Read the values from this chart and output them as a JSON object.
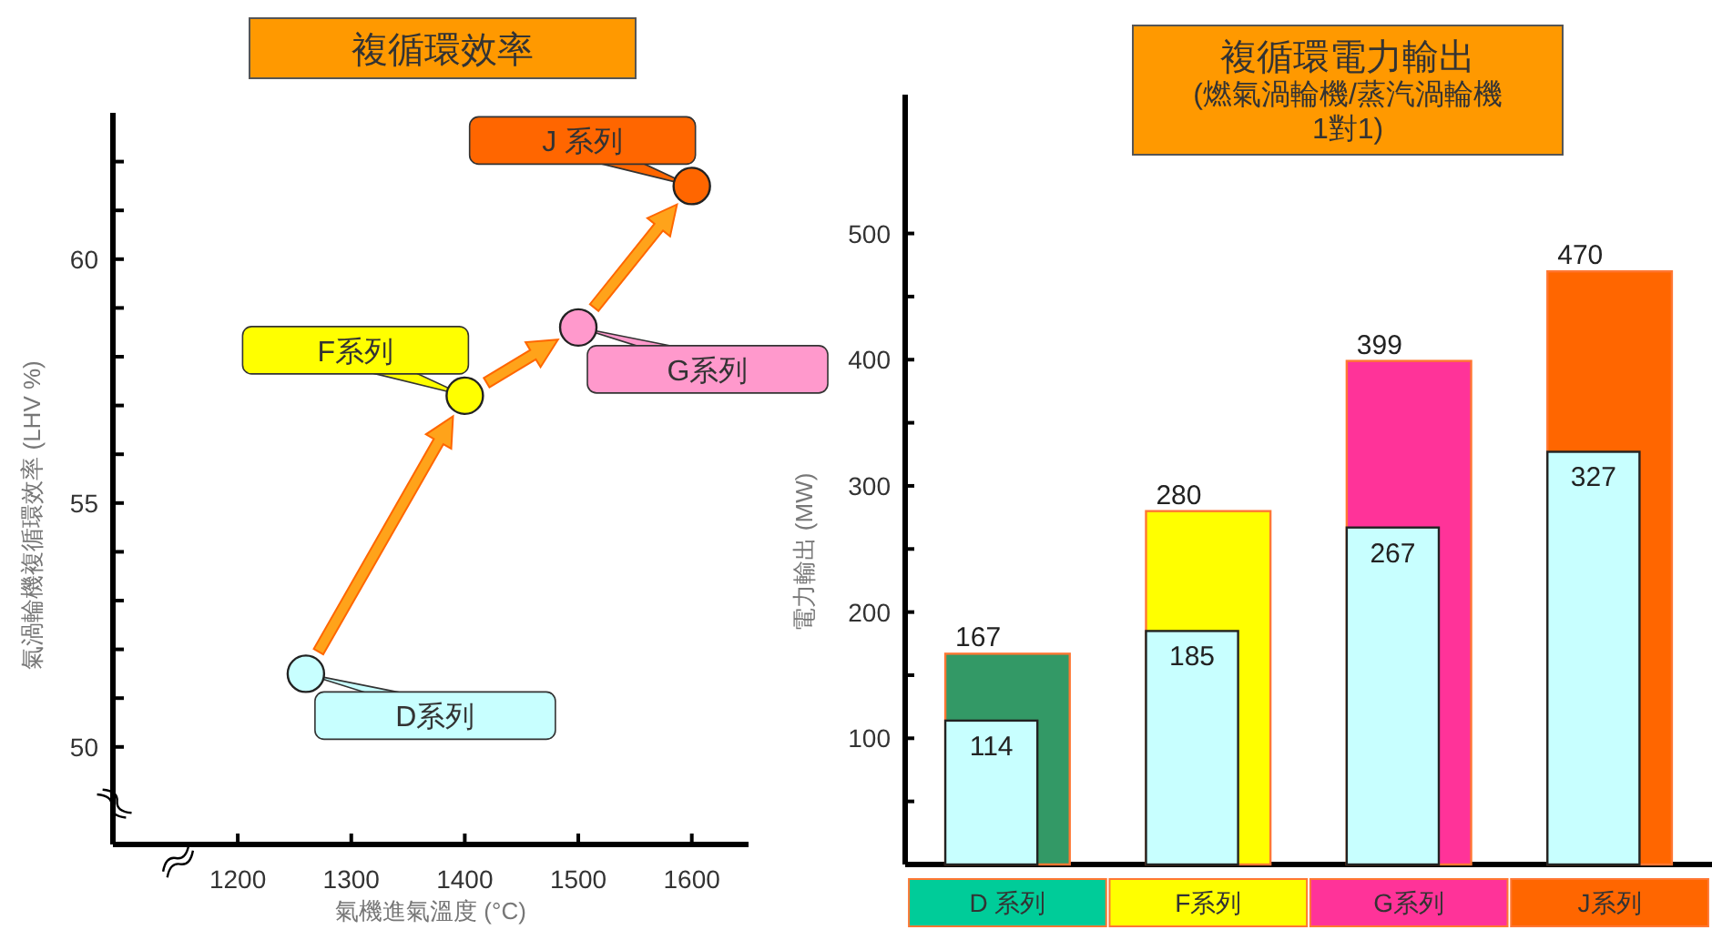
{
  "chart_data": [
    {
      "type": "scatter",
      "title": "複循環效率",
      "xlabel": "氣機進氣溫度 (°C)",
      "ylabel": "氣渦輪機複循環效率 (LHV %)",
      "x": [
        1260,
        1400,
        1500,
        1600
      ],
      "series": [
        {
          "values": [
            51.5,
            57.2,
            58.6,
            61.5
          ],
          "colors": [
            "#c8ffff",
            "#ffff00",
            "#ff99cc",
            "#ff6600"
          ]
        }
      ],
      "xlim": [
        1090,
        1650
      ],
      "xticks": [
        1200,
        1300,
        1400,
        1500,
        1600
      ],
      "ylim": [
        48,
        63
      ],
      "yticks": [
        50,
        {
          "value": 51,
          "label": null
        },
        {
          "value": 52,
          "label": null
        },
        {
          "value": 53,
          "label": null
        },
        {
          "value": 54,
          "label": null
        },
        55,
        {
          "value": 56,
          "label": null
        },
        {
          "value": 57,
          "label": null
        },
        {
          "value": 58,
          "label": null
        },
        {
          "value": 59,
          "label": null
        },
        60,
        {
          "value": 61,
          "label": null
        },
        {
          "value": 62,
          "label": null
        }
      ],
      "marker": "circle",
      "annotations": [
        {
          "text": "D系列",
          "x": 1260,
          "y": 51.5
        },
        {
          "text": "F系列",
          "x": 1400,
          "y": 57.2
        },
        {
          "text": "G系列",
          "x": 1500,
          "y": 58.6
        },
        {
          "text": "J 系列",
          "x": 1600,
          "y": 61.5
        }
      ]
    },
    {
      "type": "bar",
      "title": "複循環電力輸出",
      "subtitle": "(燃氣渦輪機/蒸汽渦輪機\n1對1)",
      "ylabel": "電力輸出 (MW)",
      "categories": [
        "D 系列",
        "F系列",
        "G系列",
        "J系列"
      ],
      "series": [
        {
          "values": [
            167,
            280,
            399,
            470
          ],
          "colors": [
            "#339966",
            "#ffff00",
            "#ff3399",
            "#ff6600"
          ]
        },
        {
          "values": [
            114,
            185,
            267,
            327
          ],
          "color": "#c8ffff"
        }
      ],
      "ylim": [
        0,
        610
      ],
      "yticks": [
        {
          "value": 50,
          "label": null
        },
        100,
        {
          "value": 150,
          "label": null
        },
        200,
        {
          "value": 250,
          "label": null
        },
        300,
        {
          "value": 350,
          "label": null
        },
        400,
        {
          "value": 450,
          "label": null
        },
        500
      ],
      "data_labels": true
    }
  ]
}
